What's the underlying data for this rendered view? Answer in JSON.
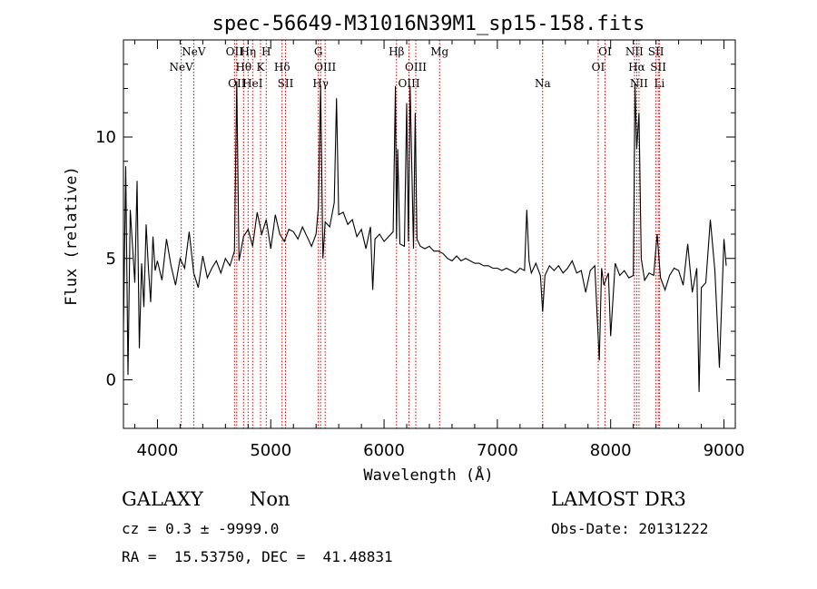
{
  "chart_data": {
    "type": "line",
    "title": "spec-56649-M31016N39M1_sp15-158.fits",
    "xlabel": "Wavelength (Å)",
    "ylabel": "Flux (relative)",
    "xlim": [
      3700,
      9100
    ],
    "ylim": [
      -2,
      14
    ],
    "xticks": [
      4000,
      5000,
      6000,
      7000,
      8000,
      9000
    ],
    "yticks": [
      0,
      5,
      10
    ],
    "spectral_lines": [
      {
        "label": "NeV",
        "wavelength": 4210,
        "row": 1
      },
      {
        "label": "NeV",
        "wavelength": 4320,
        "row": 0
      },
      {
        "label": "OII",
        "wavelength": 4680,
        "row": 0
      },
      {
        "label": "OII",
        "wavelength": 4700,
        "row": 2
      },
      {
        "label": "Hθ",
        "wavelength": 4760,
        "row": 1
      },
      {
        "label": "Hη",
        "wavelength": 4800,
        "row": 0
      },
      {
        "label": "HeI",
        "wavelength": 4840,
        "row": 2
      },
      {
        "label": "K",
        "wavelength": 4910,
        "row": 1
      },
      {
        "label": "H",
        "wavelength": 4960,
        "row": 0
      },
      {
        "label": "Hδ",
        "wavelength": 5100,
        "row": 1
      },
      {
        "label": "SII",
        "wavelength": 5130,
        "row": 2
      },
      {
        "label": "G",
        "wavelength": 5420,
        "row": 0
      },
      {
        "label": "Hγ",
        "wavelength": 5440,
        "row": 2
      },
      {
        "label": "OIII",
        "wavelength": 5480,
        "row": 1
      },
      {
        "label": "Hβ",
        "wavelength": 6110,
        "row": 0
      },
      {
        "label": "OIII",
        "wavelength": 6220,
        "row": 2
      },
      {
        "label": "OIII",
        "wavelength": 6280,
        "row": 1
      },
      {
        "label": "Mg",
        "wavelength": 6490,
        "row": 0
      },
      {
        "label": "Na",
        "wavelength": 7400,
        "row": 2
      },
      {
        "label": "OI",
        "wavelength": 7890,
        "row": 1
      },
      {
        "label": "OI",
        "wavelength": 7950,
        "row": 0
      },
      {
        "label": "Hα",
        "wavelength": 8230,
        "row": 1
      },
      {
        "label": "NII",
        "wavelength": 8210,
        "row": 0
      },
      {
        "label": "NII",
        "wavelength": 8250,
        "row": 2
      },
      {
        "label": "SII",
        "wavelength": 8400,
        "row": 0
      },
      {
        "label": "SII",
        "wavelength": 8420,
        "row": 1
      },
      {
        "label": "Li",
        "wavelength": 8430,
        "row": 2
      }
    ],
    "spectrum": {
      "x": [
        3700,
        3720,
        3740,
        3760,
        3780,
        3800,
        3820,
        3840,
        3860,
        3880,
        3900,
        3920,
        3940,
        3960,
        3980,
        4000,
        4040,
        4080,
        4120,
        4160,
        4200,
        4240,
        4280,
        4320,
        4360,
        4400,
        4440,
        4480,
        4520,
        4560,
        4600,
        4640,
        4680,
        4700,
        4720,
        4760,
        4800,
        4840,
        4880,
        4920,
        4960,
        5000,
        5040,
        5080,
        5120,
        5160,
        5200,
        5240,
        5280,
        5320,
        5360,
        5400,
        5420,
        5440,
        5460,
        5480,
        5520,
        5560,
        5580,
        5600,
        5640,
        5680,
        5720,
        5760,
        5800,
        5840,
        5880,
        5900,
        5920,
        5960,
        6000,
        6040,
        6080,
        6100,
        6110,
        6120,
        6140,
        6180,
        6200,
        6215,
        6230,
        6260,
        6275,
        6290,
        6320,
        6360,
        6400,
        6440,
        6480,
        6520,
        6560,
        6600,
        6640,
        6680,
        6720,
        6760,
        6800,
        6840,
        6880,
        6920,
        6960,
        7000,
        7040,
        7080,
        7120,
        7160,
        7200,
        7240,
        7260,
        7280,
        7300,
        7340,
        7380,
        7400,
        7420,
        7460,
        7500,
        7540,
        7580,
        7620,
        7660,
        7700,
        7740,
        7780,
        7820,
        7860,
        7900,
        7920,
        7940,
        7980,
        8000,
        8040,
        8080,
        8120,
        8160,
        8200,
        8215,
        8230,
        8250,
        8270,
        8300,
        8340,
        8380,
        8410,
        8440,
        8480,
        8520,
        8560,
        8600,
        8640,
        8680,
        8720,
        8760,
        8780,
        8800,
        8840,
        8880,
        8920,
        8960,
        9000,
        9020
      ],
      "y": [
        2.0,
        8.8,
        0.2,
        7.0,
        5.5,
        4.0,
        8.2,
        1.3,
        4.8,
        3.0,
        6.4,
        4.6,
        3.2,
        5.9,
        4.5,
        4.9,
        4.1,
        5.8,
        4.7,
        3.9,
        5.0,
        4.6,
        6.1,
        4.4,
        3.8,
        5.1,
        4.2,
        4.6,
        4.9,
        4.4,
        5.0,
        4.7,
        5.3,
        12.3,
        4.9,
        5.9,
        6.2,
        5.5,
        6.9,
        6.0,
        6.6,
        5.4,
        6.8,
        6.0,
        5.7,
        6.2,
        6.1,
        5.8,
        6.3,
        5.9,
        5.5,
        6.0,
        7.1,
        12.1,
        5.0,
        6.5,
        6.3,
        7.3,
        11.6,
        6.8,
        6.9,
        6.4,
        6.6,
        5.9,
        6.2,
        5.4,
        6.3,
        3.7,
        5.8,
        6.0,
        5.7,
        5.9,
        6.1,
        12.1,
        5.8,
        9.5,
        5.6,
        5.5,
        11.4,
        5.7,
        12.1,
        5.4,
        11.0,
        5.8,
        5.5,
        5.4,
        5.5,
        5.3,
        5.3,
        5.2,
        5.0,
        4.9,
        5.1,
        4.9,
        5.0,
        4.9,
        4.8,
        4.8,
        4.7,
        4.7,
        4.6,
        4.6,
        4.5,
        4.6,
        4.5,
        4.4,
        4.6,
        4.5,
        7.0,
        4.9,
        4.4,
        4.8,
        4.3,
        2.8,
        4.3,
        4.7,
        4.5,
        4.7,
        4.4,
        4.6,
        4.9,
        4.4,
        4.5,
        3.6,
        4.5,
        4.7,
        0.8,
        4.6,
        3.9,
        4.4,
        1.8,
        4.8,
        4.3,
        4.5,
        4.2,
        4.3,
        12.2,
        9.5,
        11.0,
        5.0,
        4.1,
        4.4,
        4.3,
        6.0,
        4.2,
        3.7,
        4.3,
        4.6,
        4.5,
        3.9,
        5.6,
        3.6,
        4.6,
        -0.5,
        3.8,
        4.0,
        6.6,
        4.5,
        0.5,
        5.8,
        4.7
      ]
    }
  },
  "info": {
    "object_class": "GALAXY",
    "subclass": "Non",
    "cz_line": "cz = 0.3 ± -9999.0",
    "radec_line": "RA =  15.53750, DEC =  41.48831",
    "survey": "LAMOST DR3",
    "obs_date_line": "Obs-Date: 20131222"
  },
  "colors": {
    "spectrum": "#000000",
    "line_marker": "#cc0000",
    "axes": "#000000"
  }
}
